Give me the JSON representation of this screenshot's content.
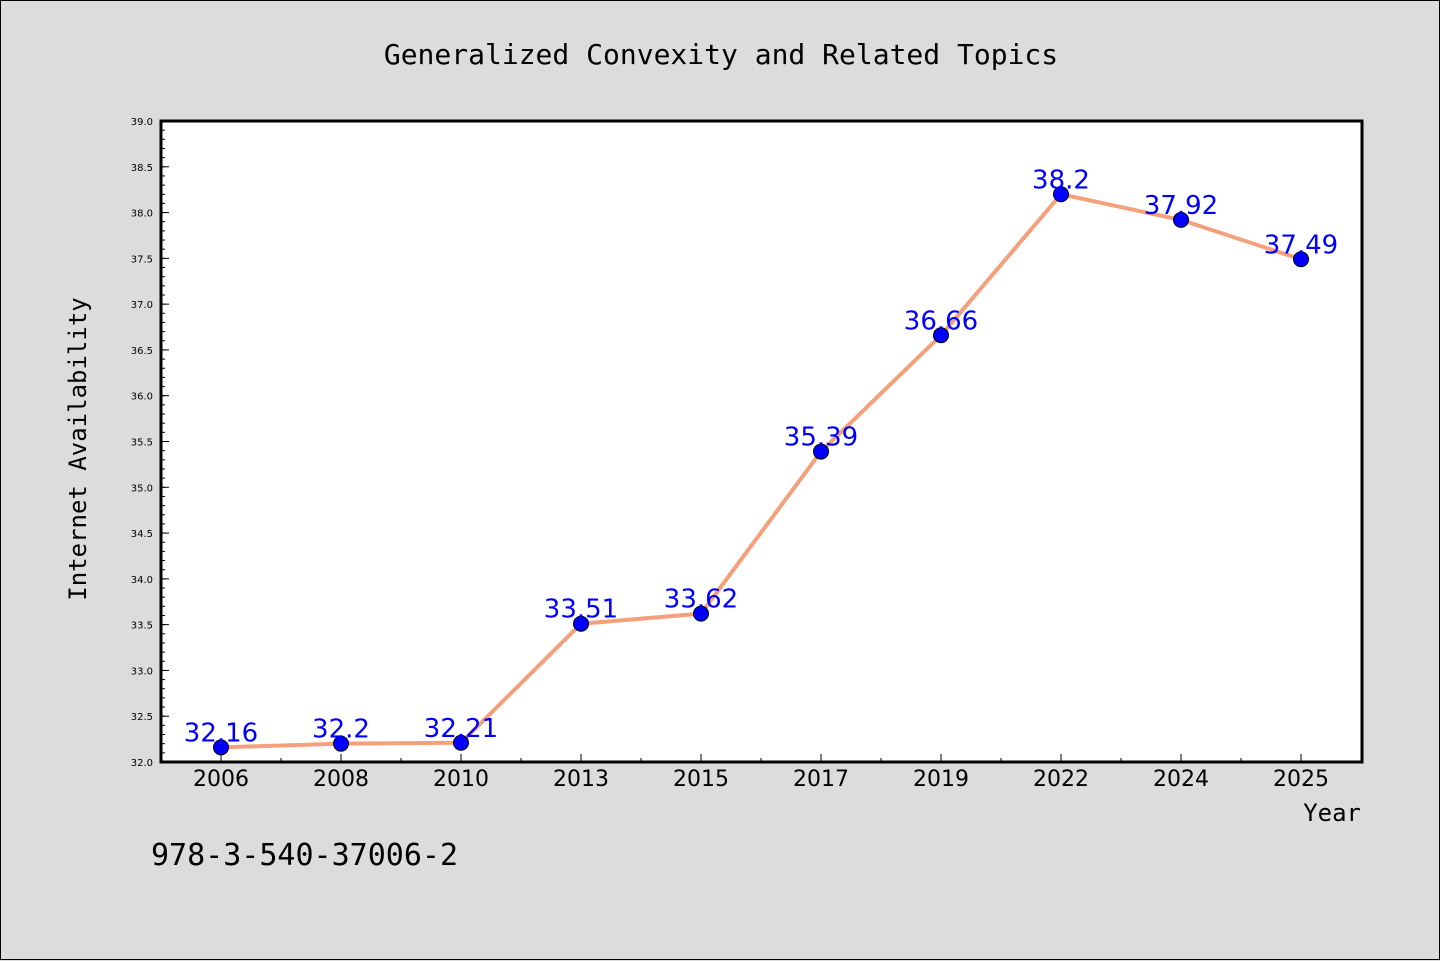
{
  "chart_data": {
    "type": "line",
    "title": "Generalized Convexity and Related Topics",
    "xlabel": "Year",
    "ylabel": "Internet Availability",
    "categories": [
      "2006",
      "2008",
      "2010",
      "2013",
      "2015",
      "2017",
      "2019",
      "2022",
      "2024",
      "2025"
    ],
    "series": [
      {
        "values": [
          32.16,
          32.2,
          32.21,
          33.51,
          33.62,
          35.39,
          36.66,
          38.2,
          37.92,
          37.49
        ]
      }
    ],
    "data_labels": [
      "32.16",
      "32.2",
      "32.21",
      "33.51",
      "33.62",
      "35.39",
      "36.66",
      "38.2",
      "37.92",
      "37.49"
    ],
    "ylim": [
      32.0,
      39.0
    ],
    "y_ticks": [
      "32.0",
      "32.5",
      "33.0",
      "33.5",
      "34.0",
      "34.5",
      "35.0",
      "35.5",
      "36.0",
      "36.5",
      "37.0",
      "37.5",
      "38.0",
      "38.5",
      "39.0"
    ],
    "grid": false,
    "line_color": "#f4a07a",
    "marker_color": "#0000ff",
    "label_color": "#0000ff"
  },
  "annotation": {
    "isbn": "978-3-540-37006-2"
  }
}
